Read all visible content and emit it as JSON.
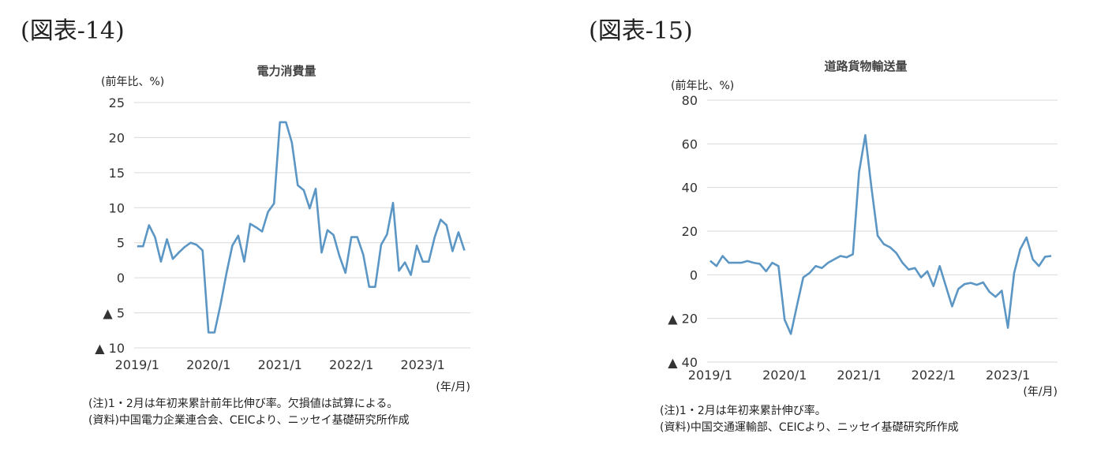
{
  "panels": [
    {
      "figure_label": "(図表-14)",
      "notes": [
        "(注)1・2月は年初来累計前年比伸び率。欠損値は試算による。",
        "(資料)中国電力企業連合会、CEICより、ニッセイ基礎研究所作成"
      ],
      "chart_data": {
        "type": "line",
        "title": "電力消費量",
        "ylabel": "(前年比、%)",
        "xlabel": "(年/月)",
        "ylim": [
          -10,
          25
        ],
        "yticks": [
          25,
          20,
          15,
          10,
          5,
          0,
          -5,
          -10
        ],
        "ytick_labels": [
          "25",
          "20",
          "15",
          "10",
          "5",
          "0",
          "▲ 5",
          "▲ 10"
        ],
        "xtick_labels": [
          "2019/1",
          "2020/1",
          "2021/1",
          "2022/1",
          "2023/1"
        ],
        "x_start": "2019/1",
        "grid": true,
        "line_color": "#5b96c4",
        "series": [
          {
            "values": [
              4.5,
              4.5,
              7.5,
              5.8,
              2.3,
              5.5,
              2.7,
              3.6,
              4.4,
              5.0,
              4.7,
              3.9,
              -7.8,
              -7.8,
              -3.9,
              0.6,
              4.6,
              6.0,
              2.3,
              7.7,
              7.2,
              6.6,
              9.4,
              10.6,
              22.2,
              22.2,
              19.3,
              13.2,
              12.5,
              9.9,
              12.7,
              3.6,
              6.8,
              6.1,
              3.1,
              0.7,
              5.8,
              5.8,
              3.3,
              -1.3,
              -1.3,
              4.7,
              6.2,
              10.7,
              1.0,
              2.2,
              0.4,
              4.6,
              2.3,
              2.3,
              5.8,
              8.3,
              7.5,
              3.8,
              6.5,
              3.9
            ]
          }
        ]
      }
    },
    {
      "figure_label": "(図表-15)",
      "notes": [
        "(注)1・2月は年初来累計伸び率。",
        "(資料)中国交通運輸部、CEICより、ニッセイ基礎研究所作成"
      ],
      "chart_data": {
        "type": "line",
        "title": "道路貨物輸送量",
        "ylabel": "(前年比、%)",
        "xlabel": "(年/月)",
        "ylim": [
          -40,
          80
        ],
        "yticks": [
          80,
          60,
          40,
          20,
          0,
          -20,
          -40
        ],
        "ytick_labels": [
          "80",
          "60",
          "40",
          "20",
          "0",
          "▲ 20",
          "▲ 40"
        ],
        "xtick_labels": [
          "2019/1",
          "2020/1",
          "2021/1",
          "2022/1",
          "2023/1"
        ],
        "x_start": "2019/1",
        "grid": true,
        "line_color": "#5b96c4",
        "series": [
          {
            "values": [
              6.4,
              4.0,
              8.6,
              5.5,
              5.5,
              5.5,
              6.3,
              5.5,
              5.0,
              1.6,
              5.5,
              4.0,
              -20.6,
              -27.1,
              -14.0,
              -1.2,
              0.8,
              4.0,
              3.1,
              5.5,
              7.1,
              8.6,
              8.0,
              9.4,
              47.0,
              64.0,
              40.0,
              17.9,
              14.0,
              12.6,
              10.0,
              5.5,
              2.4,
              3.1,
              -1.2,
              1.6,
              -5.2,
              4.0,
              -5.2,
              -14.5,
              -6.5,
              -4.3,
              -3.7,
              -4.6,
              -3.5,
              -7.8,
              -10.1,
              -7.3,
              -24.3,
              0.8,
              11.8,
              17.1,
              7.1,
              4.0,
              8.3,
              8.6
            ]
          }
        ]
      }
    }
  ]
}
